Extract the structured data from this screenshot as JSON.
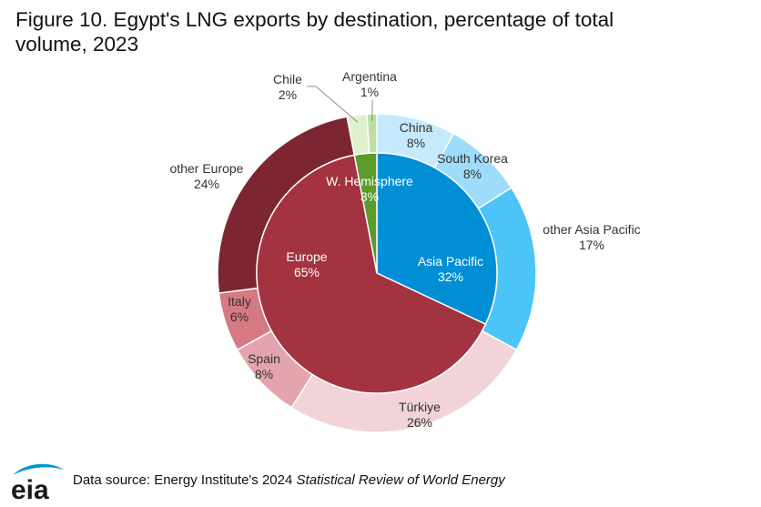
{
  "title": "Figure 10. Egypt's LNG exports by destination, percentage of total volume, 2023",
  "footer": {
    "prefix": "Data source: Energy Institute's 2024 ",
    "italic": "Statistical Review of World Energy"
  },
  "logo_text": "eia",
  "chart_data": {
    "type": "pie",
    "subtype": "sunburst",
    "inner": [
      {
        "label": "Asia Pacific",
        "value": 32,
        "display": "32%",
        "color": "#008fd5"
      },
      {
        "label": "Europe",
        "value": 65,
        "display": "65%",
        "color": "#a33340"
      },
      {
        "label": "W. Hemisphere",
        "value": 3,
        "display": "3%",
        "color": "#5c9a2c"
      }
    ],
    "outer": [
      {
        "label": "China",
        "value": 8,
        "display": "8%",
        "color": "#c5eafd"
      },
      {
        "label": "South Korea",
        "value": 8,
        "display": "8%",
        "color": "#9fdcfa"
      },
      {
        "label": "other Asia Pacific",
        "value": 17,
        "display": "17%",
        "color": "#4cc4f8"
      },
      {
        "label": "Türkiye",
        "value": 26,
        "display": "26%",
        "color": "#f1d3d8"
      },
      {
        "label": "Spain",
        "value": 8,
        "display": "8%",
        "color": "#e3a4ad"
      },
      {
        "label": "Italy",
        "value": 6,
        "display": "6%",
        "color": "#d57983"
      },
      {
        "label": "other Europe",
        "value": 24,
        "display": "24%",
        "color": "#7c2631"
      },
      {
        "label": "Chile",
        "value": 2,
        "display": "2%",
        "color": "#dff0cf"
      },
      {
        "label": "Argentina",
        "value": 1,
        "display": "1%",
        "color": "#bddea2"
      }
    ]
  }
}
